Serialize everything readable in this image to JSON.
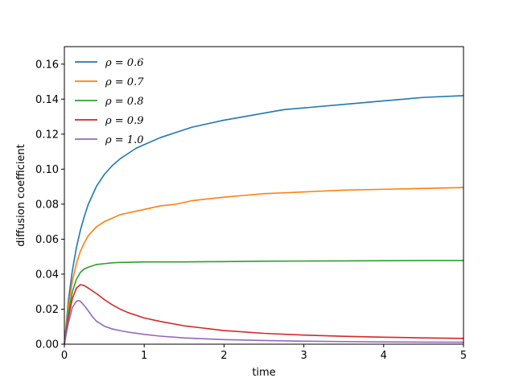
{
  "chart_data": {
    "type": "line",
    "title": "",
    "xlabel": "time",
    "ylabel": "diffusion coefficient",
    "xlim": [
      0,
      5
    ],
    "ylim": [
      0,
      0.17
    ],
    "xticks": [
      0,
      1,
      2,
      3,
      4,
      5
    ],
    "xtick_labels": [
      "0",
      "1",
      "2",
      "3",
      "4",
      "5"
    ],
    "yticks": [
      0.0,
      0.02,
      0.04,
      0.06,
      0.08,
      0.1,
      0.12,
      0.14,
      0.16
    ],
    "ytick_labels": [
      "0.00",
      "0.02",
      "0.04",
      "0.06",
      "0.08",
      "0.10",
      "0.12",
      "0.14",
      "0.16"
    ],
    "grid": false,
    "legend_position": "top-left",
    "series": [
      {
        "name": "ρ = 0.6",
        "color": "#1f77b4",
        "x": [
          0,
          0.05,
          0.1,
          0.15,
          0.2,
          0.25,
          0.3,
          0.4,
          0.5,
          0.6,
          0.7,
          0.8,
          0.9,
          1.0,
          1.2,
          1.4,
          1.6,
          1.8,
          2.0,
          2.25,
          2.5,
          2.75,
          3.0,
          3.5,
          4.0,
          4.5,
          5.0
        ],
        "y": [
          0,
          0.025,
          0.042,
          0.055,
          0.065,
          0.073,
          0.08,
          0.09,
          0.097,
          0.102,
          0.106,
          0.109,
          0.112,
          0.114,
          0.118,
          0.121,
          0.124,
          0.126,
          0.128,
          0.13,
          0.132,
          0.134,
          0.135,
          0.137,
          0.139,
          0.141,
          0.142
        ]
      },
      {
        "name": "ρ = 0.7",
        "color": "#ff7f0e",
        "x": [
          0,
          0.05,
          0.1,
          0.15,
          0.2,
          0.25,
          0.3,
          0.4,
          0.5,
          0.6,
          0.7,
          0.8,
          0.9,
          1.0,
          1.2,
          1.4,
          1.6,
          1.8,
          2.0,
          2.25,
          2.5,
          2.75,
          3.0,
          3.5,
          4.0,
          4.5,
          5.0
        ],
        "y": [
          0,
          0.022,
          0.036,
          0.046,
          0.053,
          0.058,
          0.062,
          0.067,
          0.07,
          0.072,
          0.074,
          0.075,
          0.076,
          0.077,
          0.079,
          0.08,
          0.082,
          0.083,
          0.084,
          0.085,
          0.086,
          0.0865,
          0.087,
          0.088,
          0.0885,
          0.089,
          0.0895
        ]
      },
      {
        "name": "ρ = 0.8",
        "color": "#2ca02c",
        "x": [
          0,
          0.05,
          0.1,
          0.15,
          0.2,
          0.25,
          0.3,
          0.4,
          0.5,
          0.6,
          0.7,
          0.8,
          1.0,
          1.2,
          1.5,
          2.0,
          2.5,
          3.0,
          3.5,
          4.0,
          4.5,
          5.0
        ],
        "y": [
          0,
          0.018,
          0.03,
          0.037,
          0.041,
          0.043,
          0.044,
          0.0455,
          0.046,
          0.0465,
          0.0467,
          0.0468,
          0.047,
          0.047,
          0.047,
          0.0472,
          0.0474,
          0.0475,
          0.0476,
          0.0477,
          0.0478,
          0.0478
        ]
      },
      {
        "name": "ρ = 0.9",
        "color": "#d62728",
        "x": [
          0,
          0.05,
          0.1,
          0.15,
          0.2,
          0.25,
          0.3,
          0.4,
          0.5,
          0.6,
          0.7,
          0.8,
          0.9,
          1.0,
          1.2,
          1.5,
          2.0,
          2.5,
          3.0,
          3.5,
          4.0,
          4.5,
          5.0
        ],
        "y": [
          0,
          0.015,
          0.026,
          0.032,
          0.034,
          0.0335,
          0.032,
          0.029,
          0.0255,
          0.0225,
          0.02,
          0.018,
          0.0165,
          0.015,
          0.013,
          0.0105,
          0.0078,
          0.0062,
          0.0052,
          0.0045,
          0.004,
          0.0036,
          0.0033
        ]
      },
      {
        "name": "ρ = 1.0",
        "color": "#9467bd",
        "x": [
          0,
          0.05,
          0.1,
          0.15,
          0.18,
          0.2,
          0.25,
          0.3,
          0.35,
          0.4,
          0.5,
          0.6,
          0.7,
          0.8,
          1.0,
          1.2,
          1.5,
          2.0,
          2.5,
          3.0,
          3.5,
          4.0,
          4.5,
          5.0
        ],
        "y": [
          0,
          0.012,
          0.021,
          0.0245,
          0.025,
          0.0245,
          0.022,
          0.019,
          0.0158,
          0.0132,
          0.0103,
          0.0087,
          0.0077,
          0.0069,
          0.0056,
          0.0046,
          0.0036,
          0.0026,
          0.0021,
          0.0017,
          0.0015,
          0.0013,
          0.0012,
          0.0011
        ]
      }
    ]
  }
}
